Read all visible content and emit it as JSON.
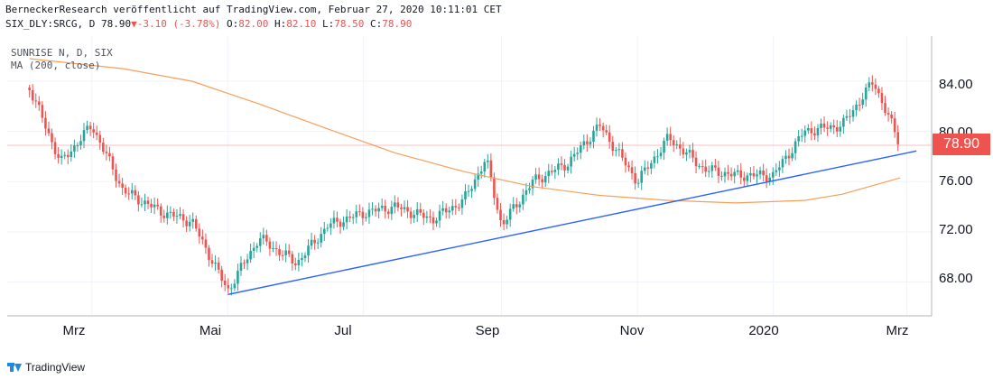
{
  "header": {
    "line1": "BerneckerResearch veröffentlicht auf TradingView.com, Februar 27, 2020 10:11:01 CET",
    "symbol": "SIX_DLY:SRCG, D 78.90",
    "change": "-3.10 (-3.78%)",
    "open_label": "O:",
    "open": "82.00",
    "high_label": "H:",
    "high": "82.10",
    "low_label": "L:",
    "low": "78.50",
    "close_label": "C:",
    "close": "78.90"
  },
  "legend": {
    "series": "SUNRISE N, D, SIX",
    "indicator": "MA (200, close)"
  },
  "footer": {
    "brand": "TradingView"
  },
  "last_price": "78.90",
  "colors": {
    "up": "#26a69a",
    "down": "#ef5350",
    "ma": "#f5a05a",
    "trendline": "#2962ff",
    "price_line": "#ef5350"
  },
  "chart_data": {
    "type": "line",
    "title": "SUNRISE N, D, SIX",
    "xlabel": "",
    "ylabel": "",
    "x_ticks": [
      "Mrz",
      "Mai",
      "Jul",
      "Sep",
      "Nov",
      "2020",
      "Mrz"
    ],
    "y_ticks": [
      "84.00",
      "80.00",
      "76.00",
      "72.00",
      "68.00"
    ],
    "ylim": [
      65.3,
      87.6
    ],
    "grid": true,
    "series": [
      {
        "name": "SUNRISE N, D, SIX",
        "x": [
          "2019-02-01",
          "2019-02-15",
          "2019-03-01",
          "2019-03-15",
          "2019-04-01",
          "2019-04-15",
          "2019-05-01",
          "2019-05-15",
          "2019-06-01",
          "2019-06-15",
          "2019-07-01",
          "2019-07-15",
          "2019-08-01",
          "2019-08-15",
          "2019-08-25",
          "2019-09-01",
          "2019-09-15",
          "2019-10-01",
          "2019-10-15",
          "2019-11-01",
          "2019-11-15",
          "2019-12-01",
          "2019-12-15",
          "2020-01-01",
          "2020-01-15",
          "2020-02-01",
          "2020-02-15",
          "2020-02-27"
        ],
        "values": [
          83.5,
          77.5,
          80.5,
          75.3,
          73.6,
          72.8,
          67.3,
          71.5,
          69.5,
          72.5,
          73.5,
          74.0,
          73.0,
          74.5,
          77.8,
          72.5,
          76.0,
          77.5,
          80.5,
          76.0,
          79.5,
          77.0,
          76.5,
          76.5,
          80.0,
          80.5,
          84.0,
          78.9
        ]
      },
      {
        "name": "MA (200, close)",
        "x": [
          "2019-02-01",
          "2019-03-15",
          "2019-04-15",
          "2019-05-15",
          "2019-06-15",
          "2019-07-15",
          "2019-08-15",
          "2019-09-15",
          "2019-10-15",
          "2019-11-15",
          "2019-12-15",
          "2020-01-15",
          "2020-02-01",
          "2020-02-27"
        ],
        "values": [
          85.8,
          85.0,
          84.0,
          82.2,
          80.2,
          78.3,
          76.8,
          75.6,
          74.9,
          74.5,
          74.3,
          74.5,
          75.0,
          76.3
        ]
      },
      {
        "name": "trendline",
        "x": [
          "2019-05-01",
          "2020-02-27"
        ],
        "values": [
          67.0,
          78.3
        ]
      }
    ]
  }
}
